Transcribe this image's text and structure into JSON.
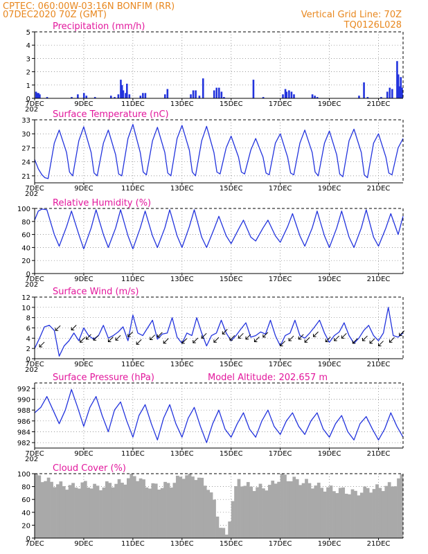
{
  "header": {
    "line1_left": "CPTEC:  060:00W-03:16N  BONFIM (RR)",
    "line2_left": "07DEC2020 70Z (GMT)",
    "line1_right": "Vertical Grid Line: 70Z",
    "line2_right": "TQ0126L028",
    "clipped_label": "202"
  },
  "colors": {
    "header": "#e8871e",
    "title": "#e2179c",
    "series": "#2233dd",
    "cloud": "#a9a9a9",
    "arrow": "#000000"
  },
  "x_axis": {
    "range_days": [
      7,
      22
    ],
    "ticks": [
      {
        "day": 7,
        "label": "7DEC"
      },
      {
        "day": 9,
        "label": "9DEC"
      },
      {
        "day": 11,
        "label": "11DEC"
      },
      {
        "day": 13,
        "label": "13DEC"
      },
      {
        "day": 15,
        "label": "15DEC"
      },
      {
        "day": 17,
        "label": "17DEC"
      },
      {
        "day": 19,
        "label": "19DEC"
      },
      {
        "day": 21,
        "label": "21DEC"
      }
    ]
  },
  "chart_data": [
    {
      "id": "precip",
      "type": "bar",
      "title": "Precipitation (mm/h)",
      "ylim": [
        0,
        5
      ],
      "yticks": [
        0,
        1,
        2,
        3,
        4,
        5
      ],
      "grid": true,
      "x_days": [
        7.05,
        7.1,
        7.15,
        7.2,
        7.5,
        8.5,
        8.75,
        9.0,
        9.1,
        9.45,
        10.1,
        10.25,
        10.4,
        10.5,
        10.55,
        10.6,
        10.7,
        10.75,
        10.85,
        11.3,
        11.4,
        11.5,
        12.3,
        12.4,
        13.35,
        13.45,
        13.55,
        13.7,
        13.85,
        14.3,
        14.4,
        14.5,
        14.6,
        14.7,
        15.9,
        16.3,
        17.1,
        17.2,
        17.25,
        17.35,
        17.45,
        17.55,
        18.3,
        18.4,
        18.5,
        20.2,
        20.4,
        20.55,
        21.1,
        21.35,
        21.45,
        21.55,
        21.75,
        21.8,
        21.85,
        21.9,
        21.95
      ],
      "values": [
        0.5,
        0.4,
        0.4,
        0.3,
        0.1,
        0.1,
        0.3,
        0.4,
        0.2,
        0.1,
        0.2,
        0.1,
        0.3,
        1.4,
        1.0,
        0.6,
        0.4,
        1.1,
        0.3,
        0.2,
        0.4,
        0.4,
        0.3,
        0.7,
        0.3,
        0.6,
        0.6,
        0.2,
        1.5,
        0.6,
        0.8,
        0.8,
        0.5,
        0.1,
        1.4,
        0.1,
        0.3,
        0.7,
        0.5,
        0.6,
        0.5,
        0.3,
        0.3,
        0.2,
        0.1,
        0.2,
        1.2,
        0.1,
        0.1,
        0.5,
        0.8,
        0.7,
        2.8,
        1.8,
        0.9,
        1.6,
        0.8
      ]
    },
    {
      "id": "temp",
      "type": "line",
      "title": "Surface Temperature (nC)",
      "ylim": [
        19.5,
        33
      ],
      "yticks": [
        21,
        24,
        27,
        30,
        33
      ],
      "grid": true,
      "series": [
        {
          "x": [
            7,
            7.15,
            7.3,
            7.42,
            7.55,
            7.8,
            8.0,
            8.3,
            8.42,
            8.55,
            8.8,
            9.0,
            9.3,
            9.42,
            9.55,
            9.8,
            10.0,
            10.3,
            10.42,
            10.55,
            10.8,
            11.0,
            11.3,
            11.42,
            11.55,
            11.8,
            12.0,
            12.3,
            12.42,
            12.55,
            12.8,
            13.0,
            13.3,
            13.42,
            13.55,
            13.8,
            14.0,
            14.3,
            14.42,
            14.55,
            14.8,
            15.0,
            15.3,
            15.42,
            15.55,
            15.8,
            16.0,
            16.3,
            16.42,
            16.55,
            16.8,
            17.0,
            17.3,
            17.42,
            17.55,
            17.8,
            18.0,
            18.3,
            18.42,
            18.55,
            18.8,
            19.0,
            19.3,
            19.42,
            19.55,
            19.8,
            20.0,
            20.3,
            20.42,
            20.55,
            20.8,
            21.0,
            21.3,
            21.42,
            21.55,
            21.8,
            22.0
          ],
          "y": [
            24.5,
            22.5,
            21.2,
            20.6,
            20.4,
            28.0,
            30.8,
            26.0,
            21.8,
            21.0,
            28.5,
            31.5,
            26.0,
            21.6,
            21.0,
            28.0,
            30.8,
            25.5,
            21.4,
            21.0,
            29.0,
            32.0,
            26.0,
            21.8,
            21.2,
            28.5,
            31.4,
            26.0,
            21.6,
            21.0,
            29.0,
            31.8,
            26.5,
            21.8,
            21.0,
            28.5,
            31.6,
            26.0,
            21.8,
            21.4,
            27.0,
            29.5,
            25.0,
            21.8,
            21.4,
            26.5,
            29.0,
            25.0,
            21.6,
            21.2,
            28.0,
            30.0,
            25.0,
            21.6,
            21.2,
            28.0,
            30.8,
            26.0,
            21.8,
            21.0,
            28.0,
            30.6,
            25.5,
            21.4,
            20.8,
            28.5,
            31.0,
            26.0,
            21.2,
            20.6,
            28.0,
            30.0,
            25.0,
            21.6,
            21.2,
            27.0,
            29.0
          ]
        }
      ]
    },
    {
      "id": "rh",
      "type": "line",
      "title": "Relative Humidity (%)",
      "ylim": [
        0,
        100
      ],
      "yticks": [
        0,
        20,
        40,
        60,
        80,
        100
      ],
      "grid": true,
      "series": [
        {
          "x": [
            7,
            7.15,
            7.3,
            7.5,
            7.8,
            8.0,
            8.3,
            8.5,
            8.8,
            9.0,
            9.3,
            9.5,
            9.8,
            10.0,
            10.3,
            10.5,
            10.8,
            11.0,
            11.3,
            11.5,
            11.8,
            12.0,
            12.3,
            12.5,
            12.8,
            13.0,
            13.3,
            13.5,
            13.8,
            14.0,
            14.3,
            14.5,
            14.8,
            15.0,
            15.3,
            15.5,
            15.8,
            16.0,
            16.3,
            16.5,
            16.8,
            17.0,
            17.3,
            17.5,
            17.8,
            18.0,
            18.3,
            18.5,
            18.8,
            19.0,
            19.3,
            19.5,
            19.8,
            20.0,
            20.3,
            20.5,
            20.8,
            21.0,
            21.3,
            21.5,
            21.8,
            22.0
          ],
          "y": [
            82,
            96,
            99,
            98,
            60,
            42,
            72,
            96,
            60,
            38,
            70,
            98,
            60,
            40,
            70,
            98,
            58,
            38,
            70,
            96,
            58,
            40,
            70,
            98,
            58,
            40,
            72,
            98,
            56,
            40,
            68,
            88,
            58,
            46,
            68,
            82,
            56,
            50,
            70,
            82,
            58,
            48,
            72,
            92,
            58,
            42,
            70,
            96,
            58,
            40,
            70,
            96,
            56,
            40,
            70,
            98,
            56,
            42,
            70,
            92,
            60,
            88
          ]
        }
      ]
    },
    {
      "id": "wind",
      "type": "line",
      "title": "Surface Wind (m/s)",
      "ylim": [
        0,
        12
      ],
      "yticks": [
        0,
        2,
        4,
        6,
        8,
        10,
        12
      ],
      "grid": true,
      "series": [
        {
          "x": [
            7,
            7.2,
            7.4,
            7.6,
            7.8,
            8.0,
            8.2,
            8.4,
            8.6,
            8.8,
            9.0,
            9.2,
            9.4,
            9.6,
            9.8,
            10.0,
            10.2,
            10.4,
            10.6,
            10.8,
            11.0,
            11.2,
            11.4,
            11.6,
            11.8,
            12.0,
            12.2,
            12.4,
            12.6,
            12.8,
            13.0,
            13.2,
            13.4,
            13.6,
            13.8,
            14.0,
            14.2,
            14.4,
            14.6,
            14.8,
            15.0,
            15.2,
            15.4,
            15.6,
            15.8,
            16.0,
            16.2,
            16.4,
            16.6,
            16.8,
            17.0,
            17.2,
            17.4,
            17.6,
            17.8,
            18.0,
            18.2,
            18.4,
            18.6,
            18.8,
            19.0,
            19.2,
            19.4,
            19.6,
            19.8,
            20.0,
            20.2,
            20.4,
            20.6,
            20.8,
            21.0,
            21.2,
            21.4,
            21.6,
            21.8,
            22.0
          ],
          "y": [
            2.0,
            4.0,
            6.2,
            6.5,
            5.5,
            0.5,
            2.5,
            3.5,
            5.0,
            3.5,
            6.0,
            4.5,
            3.8,
            4.5,
            6.5,
            4.0,
            4.5,
            5.2,
            6.2,
            3.5,
            8.5,
            5.0,
            4.5,
            6.0,
            7.5,
            3.8,
            4.8,
            5.0,
            8.0,
            4.2,
            3.0,
            5.0,
            4.5,
            8.0,
            5.0,
            2.5,
            4.5,
            5.0,
            7.5,
            5.0,
            3.5,
            4.5,
            5.8,
            7.0,
            4.2,
            4.5,
            5.2,
            4.8,
            7.5,
            4.5,
            2.5,
            4.5,
            5.0,
            7.5,
            4.5,
            4.0,
            5.0,
            6.2,
            7.5,
            5.0,
            3.2,
            4.5,
            5.2,
            7.0,
            4.5,
            3.0,
            4.0,
            5.5,
            6.5,
            4.5,
            3.5,
            5.0,
            10.0,
            4.5,
            4.2,
            5.0
          ]
        }
      ],
      "barbs": {
        "x": [
          7.2,
          7.85,
          8.5,
          8.85,
          9.1,
          9.4,
          10.0,
          10.3,
          10.8,
          11.15,
          11.7,
          12.0,
          12.25,
          13.0,
          13.45,
          13.8,
          14.3,
          14.65,
          14.95,
          15.3,
          15.6,
          15.95,
          16.3,
          17.0,
          17.35,
          17.75,
          18.0,
          18.35,
          18.85,
          19.2,
          19.5,
          19.95,
          20.35,
          20.65,
          21.0,
          21.45,
          21.85
        ],
        "y": [
          2.3,
          5.5,
          5.6,
          3.2,
          3.8,
          3.6,
          3.3,
          3.6,
          4.3,
          2.8,
          3.7,
          4.2,
          3.0,
          3.0,
          3.1,
          4.0,
          3.2,
          4.8,
          3.6,
          4.0,
          3.8,
          3.3,
          4.2,
          2.5,
          3.5,
          3.8,
          3.2,
          4.3,
          3.3,
          3.5,
          4.0,
          3.0,
          3.5,
          3.0,
          2.5,
          3.2,
          4.5
        ]
      }
    },
    {
      "id": "pressure",
      "type": "line",
      "title": "Surface Pressure (hPa)",
      "note": "Model Altitude: 202.657 m",
      "ylim": [
        981,
        993
      ],
      "yticks": [
        982,
        984,
        986,
        988,
        990,
        992
      ],
      "grid": true,
      "series": [
        {
          "x": [
            7,
            7.25,
            7.5,
            7.75,
            8.0,
            8.25,
            8.5,
            8.75,
            9.0,
            9.25,
            9.5,
            9.75,
            10.0,
            10.25,
            10.5,
            10.75,
            11.0,
            11.25,
            11.5,
            11.75,
            12.0,
            12.25,
            12.5,
            12.75,
            13.0,
            13.25,
            13.5,
            13.75,
            14.0,
            14.25,
            14.5,
            14.75,
            15.0,
            15.25,
            15.5,
            15.75,
            16.0,
            16.25,
            16.5,
            16.75,
            17.0,
            17.25,
            17.5,
            17.75,
            18.0,
            18.25,
            18.5,
            18.75,
            19.0,
            19.25,
            19.5,
            19.75,
            20.0,
            20.25,
            20.5,
            20.75,
            21.0,
            21.25,
            21.5,
            21.75,
            22.0
          ],
          "y": [
            987.5,
            988.5,
            990.5,
            988.0,
            985.5,
            988.0,
            991.8,
            988.5,
            985.0,
            988.5,
            990.5,
            987.0,
            984.0,
            988.0,
            989.5,
            986.0,
            983.0,
            987.0,
            989.0,
            985.5,
            982.5,
            986.5,
            989.0,
            985.5,
            983.0,
            986.5,
            988.5,
            985.0,
            982.0,
            985.5,
            988.0,
            984.5,
            983.0,
            985.5,
            987.5,
            984.5,
            983.0,
            986.0,
            988.0,
            985.0,
            983.5,
            986.0,
            987.5,
            985.0,
            983.5,
            986.0,
            987.5,
            984.5,
            983.0,
            985.5,
            987.0,
            984.0,
            982.5,
            985.5,
            986.8,
            984.5,
            982.5,
            984.5,
            987.5,
            985.0,
            983.0
          ]
        }
      ]
    },
    {
      "id": "cloud",
      "type": "area",
      "title": "Cloud Cover (%)",
      "ylim": [
        0,
        100
      ],
      "yticks": [
        0,
        20,
        40,
        60,
        80,
        100
      ],
      "grid": true,
      "series": [
        {
          "x": [
            7,
            7.5,
            8,
            8.5,
            9,
            9.5,
            10,
            10.5,
            11,
            11.5,
            12,
            12.5,
            13,
            13.5,
            14,
            14.25,
            14.5,
            14.75,
            15,
            15.25,
            15.5,
            16,
            16.5,
            17,
            17.5,
            18,
            18.5,
            19,
            19.5,
            20,
            20.5,
            21,
            21.5,
            22
          ],
          "y": [
            97,
            88,
            82,
            80,
            84,
            78,
            84,
            86,
            98,
            82,
            80,
            84,
            98,
            96,
            80,
            55,
            20,
            2,
            60,
            90,
            82,
            78,
            80,
            96,
            90,
            86,
            80,
            76,
            74,
            70,
            76,
            78,
            82,
            98
          ]
        }
      ]
    }
  ]
}
